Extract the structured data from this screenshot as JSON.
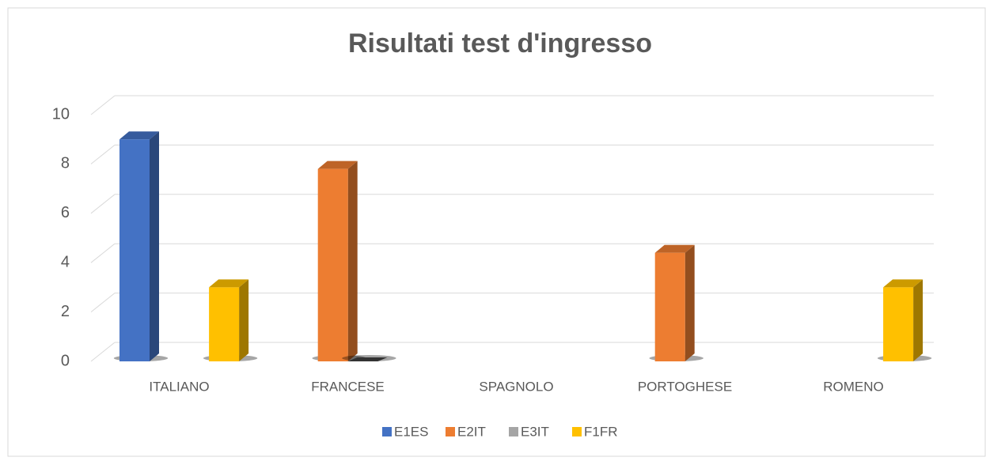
{
  "chart_data": {
    "type": "bar3d",
    "title": "Risultati test d'ingresso",
    "categories": [
      "ITALIANO",
      "FRANCESE",
      "SPAGNOLO",
      "PORTOGHESE",
      "ROMENO"
    ],
    "series": [
      {
        "name": "E1ES",
        "color": "#4472c4",
        "values": [
          9,
          null,
          null,
          null,
          null
        ]
      },
      {
        "name": "E2IT",
        "color": "#ed7d31",
        "values": [
          null,
          7.8,
          null,
          4.4,
          null
        ]
      },
      {
        "name": "E3IT",
        "color": "#a5a5a5",
        "values": [
          null,
          0,
          null,
          null,
          null
        ]
      },
      {
        "name": "F1FR",
        "color": "#ffc000",
        "values": [
          3,
          null,
          null,
          null,
          3
        ]
      }
    ],
    "ylim": [
      0,
      10
    ],
    "yticks": [
      0,
      2,
      4,
      6,
      8,
      10
    ],
    "grid": true,
    "legend": "bottom"
  }
}
